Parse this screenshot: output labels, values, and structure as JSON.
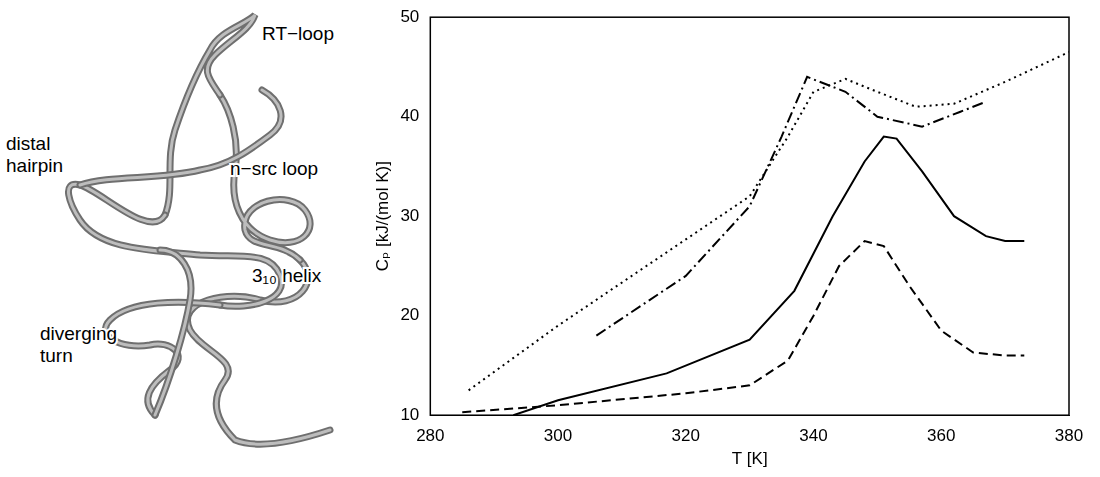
{
  "diagram": {
    "labels": [
      {
        "lines": [
          "RT−loop"
        ]
      },
      {
        "lines": [
          "distal",
          "hairpin"
        ]
      },
      {
        "lines": [
          "n−src loop"
        ]
      },
      {
        "lines": [
          "3₁₀ helix"
        ]
      },
      {
        "lines": [
          "diverging",
          "turn"
        ]
      }
    ]
  },
  "chart_data": {
    "type": "line",
    "x_label": "T [K]",
    "y_label": "Cₚ [kJ/(mol K)]",
    "xlim": [
      280,
      380
    ],
    "xticks": [
      280,
      300,
      320,
      340,
      360,
      380
    ],
    "ylim": [
      10,
      50
    ],
    "yticks": [
      10,
      20,
      30,
      40,
      50
    ],
    "grid": false,
    "series": [
      {
        "color": "#000000",
        "line_style": "dotted",
        "x": [
          286,
          300,
          315,
          330,
          336,
          340,
          345,
          350,
          356,
          362,
          370,
          380
        ],
        "values": [
          12.5,
          19,
          25.5,
          32,
          38,
          42.5,
          43.8,
          42.5,
          41,
          41.3,
          43.5,
          46.5
        ]
      },
      {
        "color": "#000000",
        "line_style": "dashdot",
        "x": [
          306,
          320,
          330,
          335,
          339,
          345,
          350,
          357,
          363,
          367
        ],
        "values": [
          18,
          24,
          31,
          38,
          44,
          42.5,
          40,
          39,
          40.5,
          41.5
        ]
      },
      {
        "color": "#000000",
        "line_style": "solid",
        "x": [
          293,
          300,
          317,
          330,
          337,
          343,
          348,
          351,
          353,
          357,
          362,
          367,
          370,
          373
        ],
        "values": [
          10,
          11.5,
          14.2,
          17.6,
          22.5,
          30,
          35.5,
          38,
          37.8,
          34.5,
          30,
          28,
          27.5,
          27.5
        ]
      },
      {
        "color": "#000000",
        "line_style": "dashed",
        "x": [
          285,
          300,
          320,
          330,
          336,
          340,
          344,
          348,
          351,
          355,
          360,
          365,
          370,
          373
        ],
        "values": [
          10.3,
          11,
          12.2,
          13,
          15.5,
          20,
          25,
          27.5,
          27,
          23,
          18.5,
          16.3,
          16,
          16
        ]
      }
    ]
  }
}
